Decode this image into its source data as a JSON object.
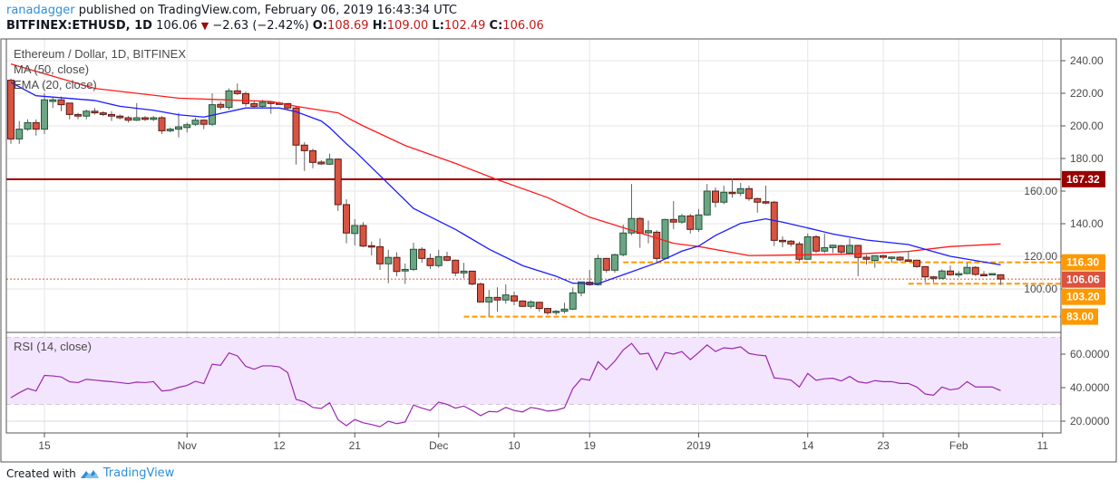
{
  "header": {
    "author": "ranadagger",
    "published": " published on TradingView.com, February 06, 2019 16:43:34 UTC",
    "symbol": "BITFINEX:ETHUSD, 1D",
    "last": "106.06",
    "change": "−2.63 (−2.42%)",
    "o_label": "O:",
    "o": "108.69",
    "h_label": "H:",
    "h": "109.00",
    "l_label": "L:",
    "l": "102.49",
    "c_label": "C:",
    "c": "106.06"
  },
  "legend": {
    "title": "Ethereum / Dollar, 1D, BITFINEX",
    "ma": "MA (50, close)",
    "ema": "EMA (20, close)",
    "rsi": "RSI (14, close)"
  },
  "footer": {
    "created": "Created with",
    "brand": "TradingView"
  },
  "colors": {
    "up": "#6ba583",
    "up_border": "#225437",
    "down": "#d75442",
    "down_border": "#5b1a13",
    "ma50": "#ff1a1a",
    "ema20": "#1c1cff",
    "rsi": "#9c27b0",
    "resistance": "#990000",
    "support": "#ff9800",
    "last_price": "#d9533f"
  },
  "chart_data": {
    "type": "candlestick",
    "price_axis": {
      "ticks": [
        "240.00",
        "220.00",
        "200.00",
        "180.00",
        "160.00",
        "140.00",
        "120.00",
        "100.00"
      ],
      "range": [
        78,
        250
      ]
    },
    "time_axis": [
      {
        "label": "15",
        "date": "2018-10-15"
      },
      {
        "label": "Nov",
        "date": "2018-11-01"
      },
      {
        "label": "12",
        "date": "2018-11-12"
      },
      {
        "label": "21",
        "date": "2018-11-21"
      },
      {
        "label": "Dec",
        "date": "2018-12-01"
      },
      {
        "label": "10",
        "date": "2018-12-10"
      },
      {
        "label": "19",
        "date": "2018-12-19"
      },
      {
        "label": "2019",
        "date": "2019-01-01"
      },
      {
        "label": "14",
        "date": "2019-01-14"
      },
      {
        "label": "23",
        "date": "2019-01-23"
      },
      {
        "label": "Feb",
        "date": "2019-02-01"
      },
      {
        "label": "11",
        "date": "2019-02-11"
      }
    ],
    "levels": [
      {
        "label": "167.32",
        "value": 167.32,
        "kind": "resistance",
        "from": "start"
      },
      {
        "label": "116.30",
        "value": 116.3,
        "kind": "support",
        "from": "2018-12-23"
      },
      {
        "label": "106.06",
        "value": 106.06,
        "kind": "last_price",
        "from": "start"
      },
      {
        "label": "103.20",
        "value": 103.2,
        "kind": "support",
        "from": "2019-01-26"
      },
      {
        "label": "83.00",
        "value": 83.0,
        "kind": "support",
        "from": "2018-12-04"
      }
    ],
    "candles": [
      [
        "2018-10-11",
        228,
        229,
        189,
        192
      ],
      [
        "2018-10-12",
        192,
        203,
        189,
        198
      ],
      [
        "2018-10-13",
        198,
        204,
        197,
        202
      ],
      [
        "2018-10-14",
        202,
        204,
        194,
        198
      ],
      [
        "2018-10-15",
        198,
        220,
        195,
        216
      ],
      [
        "2018-10-16",
        215,
        218,
        211,
        216
      ],
      [
        "2018-10-17",
        216,
        218,
        209,
        213
      ],
      [
        "2018-10-18",
        214,
        214,
        204,
        207
      ],
      [
        "2018-10-19",
        207,
        208,
        204,
        206
      ],
      [
        "2018-10-20",
        206,
        210,
        204,
        209
      ],
      [
        "2018-10-21",
        209,
        211,
        207,
        208
      ],
      [
        "2018-10-22",
        208,
        209,
        206,
        207
      ],
      [
        "2018-10-23",
        207,
        209,
        203,
        206
      ],
      [
        "2018-10-24",
        206,
        207,
        204,
        205
      ],
      [
        "2018-10-25",
        205,
        206,
        202,
        203.5
      ],
      [
        "2018-10-26",
        203.5,
        214,
        203,
        205
      ],
      [
        "2018-10-27",
        205,
        206,
        203,
        204
      ],
      [
        "2018-10-28",
        204,
        206,
        203,
        205
      ],
      [
        "2018-10-29",
        205,
        206,
        195,
        197
      ],
      [
        "2018-10-30",
        197,
        199,
        196,
        198
      ],
      [
        "2018-10-31",
        198,
        208,
        193,
        199.4
      ],
      [
        "2018-11-01",
        199,
        202,
        196,
        200.7
      ],
      [
        "2018-11-02",
        201,
        205,
        200,
        203.5
      ],
      [
        "2018-11-03",
        203.5,
        204,
        198,
        201
      ],
      [
        "2018-11-04",
        201,
        220,
        200,
        213
      ],
      [
        "2018-11-05",
        213.2,
        215,
        210,
        211.5
      ],
      [
        "2018-11-06",
        211.3,
        223,
        210,
        221.5
      ],
      [
        "2018-11-07",
        221.5,
        226,
        219,
        219.8
      ],
      [
        "2018-11-08",
        219.8,
        221,
        212,
        213.7
      ],
      [
        "2018-11-09",
        213.7,
        215,
        211,
        212
      ],
      [
        "2018-11-10",
        212,
        216,
        211,
        214.4
      ],
      [
        "2018-11-11",
        214.8,
        215,
        207.4,
        213.7
      ],
      [
        "2018-11-12",
        214,
        215,
        213,
        213.7
      ],
      [
        "2018-11-13",
        213.7,
        214,
        210,
        211
      ],
      [
        "2018-11-14",
        211,
        212,
        176.3,
        188.2
      ],
      [
        "2018-11-15",
        188.2,
        190,
        172.4,
        184.8
      ],
      [
        "2018-11-16",
        184.8,
        186,
        174,
        177.6
      ],
      [
        "2018-11-17",
        177.8,
        179,
        176,
        176.7
      ],
      [
        "2018-11-18",
        176.5,
        183,
        176,
        179.6
      ],
      [
        "2018-11-19",
        179.6,
        180,
        147.8,
        151.7
      ],
      [
        "2018-11-20",
        151.7,
        155,
        128,
        134.3
      ],
      [
        "2018-11-21",
        134,
        142.8,
        126.7,
        138.9
      ],
      [
        "2018-11-22",
        138.9,
        141,
        125.7,
        126.3
      ],
      [
        "2018-11-23",
        126.5,
        129,
        120.6,
        125.7
      ],
      [
        "2018-11-24",
        125.9,
        131,
        111.7,
        115.4
      ],
      [
        "2018-11-25",
        115.4,
        124,
        103.5,
        119.3
      ],
      [
        "2018-11-26",
        119.3,
        122.4,
        107.8,
        110.7
      ],
      [
        "2018-11-27",
        111,
        115.6,
        103,
        112
      ],
      [
        "2018-11-28",
        112,
        128.3,
        111,
        124.3
      ],
      [
        "2018-11-29",
        124.3,
        125.6,
        116,
        118.7
      ],
      [
        "2018-11-30",
        118.7,
        121.7,
        112.2,
        114.3
      ],
      [
        "2018-12-01",
        114.3,
        124,
        113,
        119.8
      ],
      [
        "2018-12-02",
        119.8,
        122.8,
        117,
        117.6
      ],
      [
        "2018-12-03",
        117.6,
        118,
        107.8,
        109.8
      ],
      [
        "2018-12-04",
        109.8,
        116,
        106.7,
        110.9
      ],
      [
        "2018-12-05",
        110.9,
        111,
        102.2,
        103
      ],
      [
        "2018-12-06",
        103,
        104,
        92,
        92
      ],
      [
        "2018-12-07",
        92,
        99.4,
        83.3,
        94.8
      ],
      [
        "2018-12-08",
        94.8,
        101,
        86,
        93.2
      ],
      [
        "2018-12-09",
        93.2,
        102.8,
        91,
        96.3
      ],
      [
        "2018-12-10",
        95.7,
        98.3,
        90,
        92.6
      ],
      [
        "2018-12-11",
        92.6,
        93,
        89,
        89.3
      ],
      [
        "2018-12-12",
        89.3,
        93,
        88,
        92
      ],
      [
        "2018-12-13",
        91.8,
        92,
        86,
        88
      ],
      [
        "2018-12-14",
        88,
        88.5,
        84,
        85.4
      ],
      [
        "2018-12-15",
        85.5,
        87,
        84,
        86.3
      ],
      [
        "2018-12-16",
        86.3,
        91.5,
        85,
        87.6
      ],
      [
        "2018-12-17",
        87.6,
        100.9,
        87,
        97.6
      ],
      [
        "2018-12-18",
        97.6,
        104.3,
        95.5,
        104.3
      ],
      [
        "2018-12-19",
        104.1,
        111.7,
        102,
        102.6
      ],
      [
        "2018-12-20",
        102.6,
        121,
        102,
        118.7
      ],
      [
        "2018-12-21",
        118.7,
        119,
        110,
        111.5
      ],
      [
        "2018-12-22",
        111.5,
        121.7,
        110,
        121
      ],
      [
        "2018-12-23",
        121,
        139.4,
        120,
        134.3
      ],
      [
        "2018-12-24",
        134.3,
        164.4,
        133,
        143.2
      ],
      [
        "2018-12-25",
        143.2,
        144,
        125.2,
        134.1
      ],
      [
        "2018-12-26",
        134.4,
        142,
        128,
        135.7
      ],
      [
        "2018-12-27",
        134.8,
        136,
        116.8,
        118.7
      ],
      [
        "2018-12-28",
        118.7,
        143,
        118,
        142.6
      ],
      [
        "2018-12-29",
        142.6,
        153.9,
        136.7,
        141
      ],
      [
        "2018-12-30",
        141,
        146,
        140,
        144.8
      ],
      [
        "2018-12-31",
        144.8,
        146,
        134,
        136.5
      ],
      [
        "2019-01-01",
        136.5,
        149,
        135,
        145.4
      ],
      [
        "2019-01-02",
        145.4,
        164.4,
        145,
        160
      ],
      [
        "2019-01-03",
        160,
        162.2,
        150,
        153.2
      ],
      [
        "2019-01-04",
        153.2,
        163.3,
        152,
        159.3
      ],
      [
        "2019-01-05",
        159.3,
        167.8,
        156,
        158.5
      ],
      [
        "2019-01-06",
        158.7,
        165,
        157,
        161.5
      ],
      [
        "2019-01-07",
        161.5,
        163.3,
        154,
        155.4
      ],
      [
        "2019-01-08",
        155.4,
        156,
        146.8,
        153.2
      ],
      [
        "2019-01-09",
        153.5,
        163.3,
        152,
        153.2
      ],
      [
        "2019-01-10",
        153.2,
        154,
        126.3,
        129.8
      ],
      [
        "2019-01-11",
        129.8,
        132.2,
        125.6,
        129.3
      ],
      [
        "2019-01-12",
        129.3,
        130,
        126,
        127.6
      ],
      [
        "2019-01-13",
        127.6,
        129,
        117,
        118.2
      ],
      [
        "2019-01-14",
        118.2,
        134,
        118,
        132
      ],
      [
        "2019-01-15",
        132,
        133,
        122,
        123.2
      ],
      [
        "2019-01-16",
        123.2,
        134,
        122,
        125.3
      ],
      [
        "2019-01-17",
        125.3,
        127,
        122,
        126.8
      ],
      [
        "2019-01-18",
        126.5,
        127,
        121,
        122.6
      ],
      [
        "2019-01-19",
        122,
        131,
        121,
        126.7
      ],
      [
        "2019-01-20",
        126.7,
        127,
        107.8,
        119.3
      ],
      [
        "2019-01-21",
        119.4,
        121,
        115,
        118.2
      ],
      [
        "2019-01-22",
        117.4,
        120.5,
        113,
        120.4
      ],
      [
        "2019-01-23",
        120.4,
        121,
        118,
        119.4
      ],
      [
        "2019-01-24",
        119.4,
        120,
        116,
        119.5
      ],
      [
        "2019-01-25",
        119.4,
        120,
        117,
        117.8
      ],
      [
        "2019-01-26",
        117.8,
        122.8,
        117,
        117.6
      ],
      [
        "2019-01-27",
        117.6,
        118,
        113,
        113.7
      ],
      [
        "2019-01-28",
        113.7,
        114,
        104,
        107.4
      ],
      [
        "2019-01-29",
        107.4,
        108,
        104,
        106.5
      ],
      [
        "2019-01-30",
        106.5,
        112,
        106,
        111
      ],
      [
        "2019-01-31",
        111,
        114.4,
        108,
        108.7
      ],
      [
        "2019-02-01",
        108.9,
        111,
        107,
        109.4
      ],
      [
        "2019-02-02",
        109.4,
        116,
        109,
        113.2
      ],
      [
        "2019-02-03",
        113.2,
        114,
        108,
        108.9
      ],
      [
        "2019-02-04",
        108.9,
        111,
        108.5,
        108.8
      ],
      [
        "2019-02-05",
        108.9,
        109.5,
        108.5,
        109.4
      ],
      [
        "2019-02-06",
        108.69,
        109,
        102.49,
        106.06
      ]
    ],
    "ma50": [
      [
        "2018-10-11",
        238
      ],
      [
        "2018-10-21",
        223
      ],
      [
        "2018-10-31",
        217
      ],
      [
        "2018-11-11",
        215
      ],
      [
        "2018-11-14",
        212
      ],
      [
        "2018-11-19",
        208
      ],
      [
        "2018-11-22",
        200
      ],
      [
        "2018-11-27",
        188
      ],
      [
        "2018-12-03",
        177
      ],
      [
        "2018-12-08",
        167
      ],
      [
        "2018-12-14",
        156
      ],
      [
        "2018-12-19",
        144
      ],
      [
        "2018-12-24",
        136
      ],
      [
        "2018-12-29",
        128
      ],
      [
        "2019-01-01",
        126
      ],
      [
        "2019-01-07",
        120.5
      ],
      [
        "2019-01-15",
        121
      ],
      [
        "2019-01-20",
        121.5
      ],
      [
        "2019-01-26",
        123
      ],
      [
        "2019-01-31",
        126
      ],
      [
        "2019-02-06",
        127.6
      ]
    ],
    "ema20": [
      [
        "2018-10-11",
        226.7
      ],
      [
        "2018-10-14",
        218.5
      ],
      [
        "2018-10-21",
        215.6
      ],
      [
        "2018-10-24",
        212
      ],
      [
        "2018-10-28",
        209.6
      ],
      [
        "2018-10-31",
        206.8
      ],
      [
        "2018-11-03",
        205.4
      ],
      [
        "2018-11-08",
        211
      ],
      [
        "2018-11-12",
        211
      ],
      [
        "2018-11-14",
        208.7
      ],
      [
        "2018-11-17",
        203
      ],
      [
        "2018-11-18",
        199
      ],
      [
        "2018-11-20",
        189
      ],
      [
        "2018-11-21",
        184.6
      ],
      [
        "2018-11-28",
        149.4
      ],
      [
        "2018-12-03",
        136.5
      ],
      [
        "2018-12-07",
        124.4
      ],
      [
        "2018-12-11",
        114.3
      ],
      [
        "2018-12-15",
        107.8
      ],
      [
        "2018-12-17",
        103.5
      ],
      [
        "2018-12-20",
        103.2
      ],
      [
        "2018-12-23",
        108.7
      ],
      [
        "2018-12-27",
        116
      ],
      [
        "2018-12-30",
        123.2
      ],
      [
        "2019-01-01",
        126.3
      ],
      [
        "2019-01-03",
        132.8
      ],
      [
        "2019-01-06",
        140.2
      ],
      [
        "2019-01-09",
        143
      ],
      [
        "2019-01-11",
        141
      ],
      [
        "2019-01-14",
        137.4
      ],
      [
        "2019-01-17",
        133.7
      ],
      [
        "2019-01-21",
        130
      ],
      [
        "2019-01-26",
        127.2
      ],
      [
        "2019-01-31",
        120
      ],
      [
        "2019-02-06",
        114.8
      ]
    ],
    "rsi": {
      "ticks": [
        "60.0000",
        "40.0000",
        "20.0000"
      ],
      "bands": [
        70,
        30
      ],
      "values": [
        34,
        37,
        39.5,
        38,
        47.3,
        47,
        46.4,
        43.5,
        43,
        45,
        44.5,
        44,
        43.6,
        43,
        42.4,
        43.3,
        43,
        43.6,
        38,
        38.5,
        40.2,
        41.3,
        43.8,
        42.4,
        54,
        53.3,
        60.7,
        59,
        52.7,
        51,
        53,
        53,
        52.4,
        49,
        33,
        31.5,
        28.2,
        27.6,
        31,
        20.9,
        17.3,
        21,
        19,
        18,
        16.7,
        20,
        18.5,
        19.5,
        29.6,
        27.8,
        26.4,
        31.3,
        30,
        27.8,
        29,
        26.4,
        23.3,
        25.8,
        25.5,
        28.2,
        26.4,
        25.5,
        28.2,
        27.3,
        26,
        26.5,
        28,
        39.5,
        45.3,
        44.4,
        55.5,
        50.7,
        55.8,
        62.5,
        66.4,
        60,
        60.5,
        50.7,
        61,
        60,
        61.5,
        56.7,
        61,
        65.5,
        61.6,
        63.8,
        63.3,
        64.4,
        60.4,
        59.5,
        59,
        45.8,
        45.3,
        44.5,
        40.4,
        48.5,
        44.4,
        45.3,
        45.6,
        44,
        46.7,
        43.5,
        42.7,
        44.2,
        43.6,
        43.6,
        42.5,
        42.5,
        40.4,
        36.2,
        35.5,
        40.4,
        38.7,
        39.5,
        43.6,
        40.4,
        40.4,
        40.4,
        38.2
      ]
    }
  }
}
